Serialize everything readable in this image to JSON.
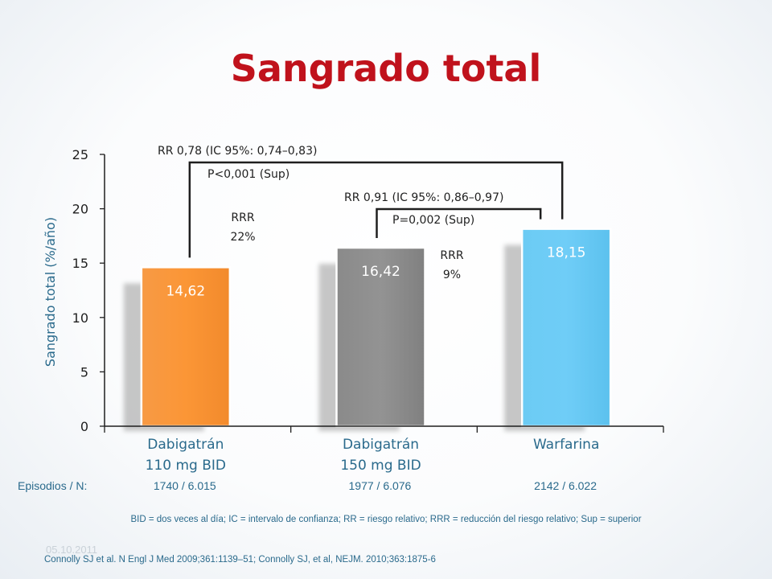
{
  "title": "Sangrado total",
  "chart_data": {
    "type": "bar",
    "ylabel": "Sangrado total (%/año)",
    "ylim": [
      0,
      25
    ],
    "yticks": [
      "0",
      "5",
      "10",
      "15",
      "20",
      "25"
    ],
    "categories": [
      [
        "Dabigatrán",
        "110 mg BID"
      ],
      [
        "Dabigatrán",
        "150 mg BID"
      ],
      [
        "Warfarina"
      ]
    ],
    "values": [
      14.62,
      16.42,
      18.15
    ],
    "value_labels": [
      "14,62",
      "16,42",
      "18,15"
    ],
    "colors": [
      "#f8953a",
      "#8c8c8c",
      "#67c9f5"
    ],
    "comparisons": [
      {
        "rr": "RR 0,78 (IC 95%: 0,74–0,83)",
        "p": "P<0,001 (Sup)",
        "rrr": [
          "RRR",
          "22%"
        ]
      },
      {
        "rr": "RR 0,91 (IC 95%: 0,86–0,97)",
        "p": "P=0,002 (Sup)",
        "rrr": [
          "RRR",
          "9%"
        ]
      }
    ]
  },
  "episodes": {
    "label": "Episodios / N:",
    "values": [
      "1740 / 6.015",
      "1977 / 6.076",
      "2142 / 6.022"
    ]
  },
  "abbreviations": "BID = dos veces al día; IC = intervalo de confianza; RR = riesgo relativo; RRR = reducción del riesgo relativo; Sup = superior",
  "date": "05.10.2011",
  "references": "Connolly SJ et al. N Engl J Med 2009;361:1139–51; Connolly SJ, et al, NEJM. 2010;363:1875-6"
}
